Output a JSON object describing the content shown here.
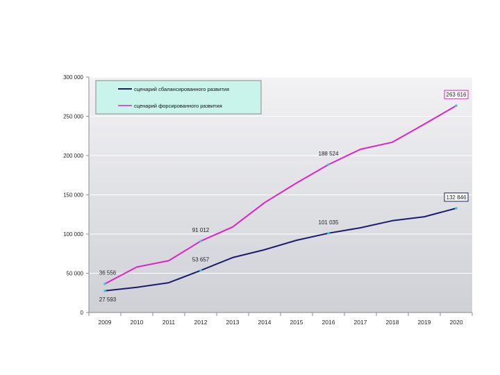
{
  "chart_data": {
    "type": "line",
    "x": [
      "2009",
      "2010",
      "2011",
      "2012",
      "2013",
      "2014",
      "2015",
      "2016",
      "2017",
      "2018",
      "2019",
      "2020"
    ],
    "ylim": [
      0,
      300000
    ],
    "yticks": [
      {
        "value": 0,
        "label": "0"
      },
      {
        "value": 50000,
        "label": "50 000"
      },
      {
        "value": 100000,
        "label": "100 000"
      },
      {
        "value": 150000,
        "label": "150 000"
      },
      {
        "value": 200000,
        "label": "200 000"
      },
      {
        "value": 250000,
        "label": "250 000"
      },
      {
        "value": 300000,
        "label": "300 000"
      }
    ],
    "grid": true,
    "legend_position": "top-left",
    "series": [
      {
        "name": "сценарий сбалансированного развития",
        "color": "#1a1a6e",
        "values": [
          27593,
          32000,
          38000,
          53657,
          70000,
          80000,
          92000,
          101035,
          108000,
          117000,
          122000,
          132846
        ]
      },
      {
        "name": "сценарий форсированного развития",
        "color": "#e020c8",
        "values": [
          36556,
          58000,
          66000,
          91012,
          109000,
          140000,
          165000,
          188524,
          208000,
          217000,
          240000,
          263616
        ]
      }
    ],
    "annotations": [
      {
        "series": 0,
        "index": 0,
        "text": "27 593",
        "boxed": false
      },
      {
        "series": 0,
        "index": 3,
        "text": "53 657",
        "boxed": false
      },
      {
        "series": 0,
        "index": 7,
        "text": "101 035",
        "boxed": false
      },
      {
        "series": 0,
        "index": 11,
        "text": "132 846",
        "boxed": true
      },
      {
        "series": 1,
        "index": 0,
        "text": "36 556",
        "boxed": false
      },
      {
        "series": 1,
        "index": 3,
        "text": "91 012",
        "boxed": false
      },
      {
        "series": 1,
        "index": 7,
        "text": "188 524",
        "boxed": false
      },
      {
        "series": 1,
        "index": 11,
        "text": "263 616",
        "boxed": true
      }
    ],
    "colors": {
      "plot_top": "#f2f2f4",
      "plot_bottom": "#cfd0d6",
      "legend_bg": "#c8f4ec",
      "grid": "#ffffff",
      "marker": "#3cc8d8"
    }
  }
}
